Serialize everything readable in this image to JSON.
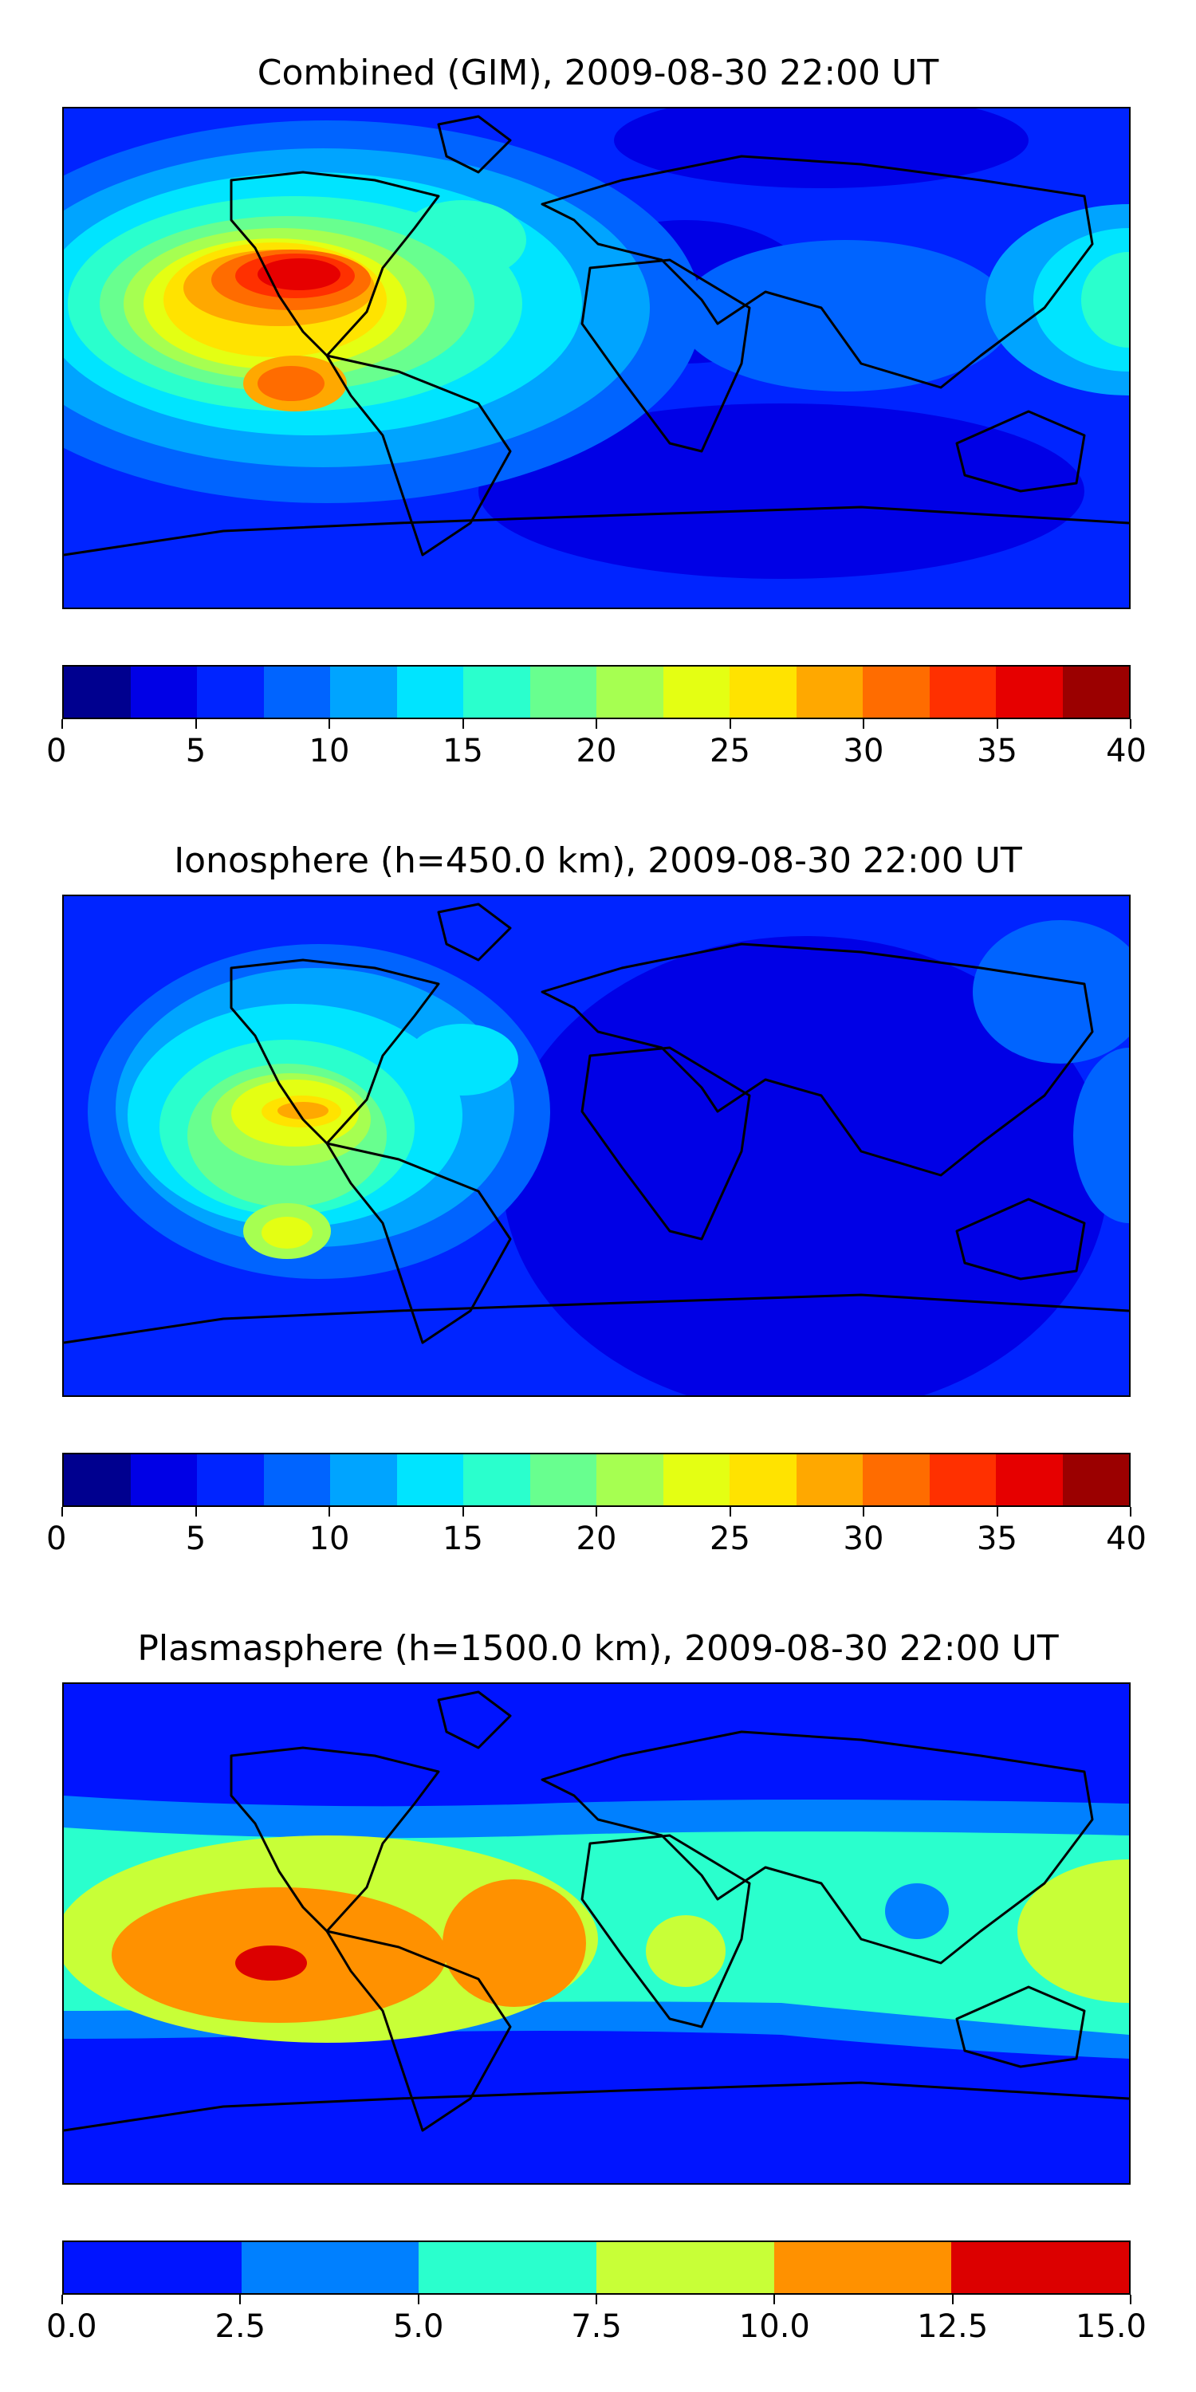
{
  "panels": [
    {
      "id": "combined",
      "title": "Combined (GIM), 2009-08-30 22:00 UT",
      "colorbar": {
        "tick_labels": [
          "0",
          "5",
          "10",
          "15",
          "20",
          "25",
          "30",
          "35",
          "40"
        ],
        "levels": [
          "#00008f",
          "#0000e6",
          "#0024ff",
          "#0064ff",
          "#00a4ff",
          "#00e4ff",
          "#2affcd",
          "#68ff8f",
          "#a6ff51",
          "#e4ff13",
          "#ffe300",
          "#ffa800",
          "#ff6c00",
          "#ff3000",
          "#e60000",
          "#9b0000"
        ]
      }
    },
    {
      "id": "ionosphere",
      "title": "Ionosphere  (h=450.0 km), 2009-08-30 22:00 UT",
      "colorbar": {
        "tick_labels": [
          "0",
          "5",
          "10",
          "15",
          "20",
          "25",
          "30",
          "35",
          "40"
        ],
        "levels": [
          "#00008f",
          "#0000e6",
          "#0024ff",
          "#0064ff",
          "#00a4ff",
          "#00e4ff",
          "#2affcd",
          "#68ff8f",
          "#a6ff51",
          "#e4ff13",
          "#ffe300",
          "#ffa800",
          "#ff6c00",
          "#ff3000",
          "#e60000",
          "#9b0000"
        ]
      }
    },
    {
      "id": "plasmasphere",
      "title": "Plasmasphere (h=1500.0 km), 2009-08-30 22:00 UT",
      "colorbar": {
        "tick_labels": [
          "0.0",
          "2.5",
          "5.0",
          "7.5",
          "10.0",
          "12.5",
          "15.0"
        ],
        "levels": [
          "#0014ff",
          "#0080ff",
          "#2affcd",
          "#c8ff37",
          "#ff9100",
          "#dc0000"
        ]
      }
    }
  ],
  "colors": {
    "coast": "#000000",
    "background": "#ffffff"
  }
}
